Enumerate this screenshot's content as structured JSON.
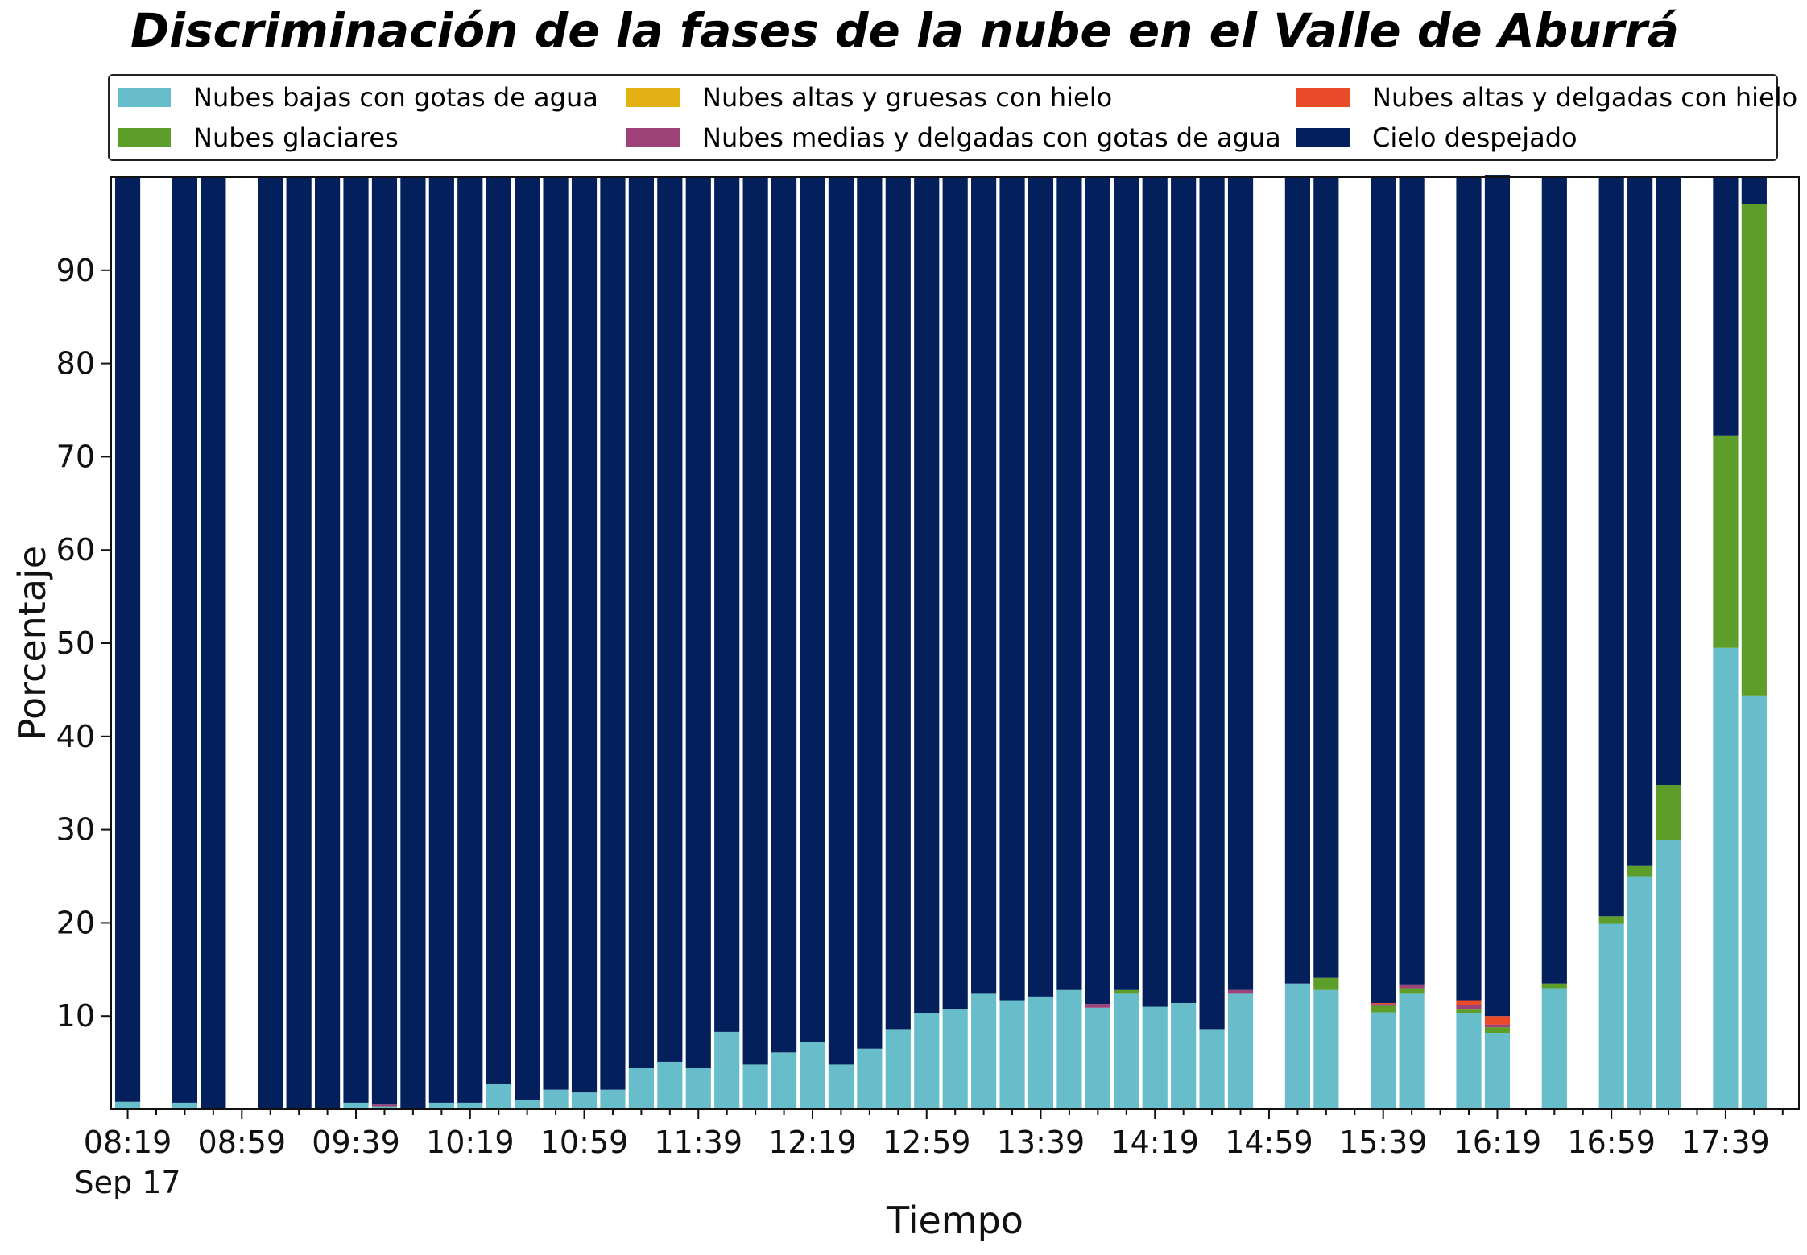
{
  "chart_data": {
    "type": "bar",
    "stacked": true,
    "title": "Discriminación de la fases de la nube en el Valle de Aburrá",
    "xlabel": "Tiempo",
    "ylabel": "Porcentaje",
    "ylim": [
      0,
      100
    ],
    "yticks": [
      10,
      20,
      30,
      40,
      50,
      60,
      70,
      80,
      90
    ],
    "grid": false,
    "legend_position": "top",
    "x_start": "08:19",
    "x_end": "17:59",
    "x_interval_minutes": 10,
    "xtick_labels": [
      "08:19",
      "08:59",
      "09:39",
      "10:19",
      "10:59",
      "11:39",
      "12:19",
      "12:59",
      "13:39",
      "14:19",
      "14:59",
      "15:39",
      "16:19",
      "16:59",
      "17:39"
    ],
    "date_label": "Sep 17",
    "series": [
      {
        "name": "Nubes bajas con gotas de agua",
        "color": "#67BECA",
        "values": [
          0.8,
          0,
          0.7,
          0,
          0,
          0,
          0,
          0,
          0.7,
          0.3,
          0,
          0.7,
          0.7,
          2.7,
          1.0,
          2.1,
          1.8,
          2.1,
          4.4,
          5.1,
          4.4,
          8.3,
          4.8,
          6.1,
          7.2,
          4.8,
          6.5,
          8.6,
          10.3,
          10.7,
          12.4,
          11.7,
          12.1,
          12.8,
          10.9,
          12.4,
          11.0,
          11.4,
          8.6,
          12.4,
          0,
          13.5,
          12.8,
          0,
          10.4,
          12.4,
          0,
          10.3,
          8.2,
          0,
          13.0,
          0,
          19.9,
          25.0,
          28.9,
          0,
          49.5,
          44.4,
          0
        ]
      },
      {
        "name": "Nubes glaciares",
        "color": "#5D9E2A",
        "values": [
          0,
          0,
          0,
          0,
          0,
          0,
          0,
          0,
          0,
          0,
          0,
          0,
          0,
          0,
          0,
          0,
          0,
          0,
          0,
          0,
          0,
          0,
          0,
          0,
          0,
          0,
          0,
          0,
          0,
          0,
          0,
          0,
          0,
          0,
          0,
          0.4,
          0,
          0,
          0,
          0,
          0,
          0,
          1.3,
          0,
          0.7,
          0.6,
          0,
          0.4,
          0.6,
          0,
          0.5,
          0,
          0.8,
          1.1,
          5.9,
          0,
          22.8,
          52.7,
          0
        ]
      },
      {
        "name": "Nubes altas y gruesas con hielo",
        "color": "#E3B114",
        "values": [
          0,
          0,
          0,
          0,
          0,
          0,
          0,
          0,
          0,
          0,
          0,
          0,
          0,
          0,
          0,
          0,
          0,
          0,
          0,
          0,
          0,
          0,
          0,
          0,
          0,
          0,
          0,
          0,
          0,
          0,
          0,
          0,
          0,
          0,
          0,
          0,
          0,
          0,
          0,
          0,
          0,
          0,
          0,
          0,
          0,
          0,
          0,
          0,
          0,
          0,
          0,
          0,
          0,
          0,
          0,
          0,
          0,
          0,
          0
        ]
      },
      {
        "name": "Nubes medias y delgadas con gotas de agua",
        "color": "#A0427A",
        "values": [
          0,
          0,
          0,
          0,
          0,
          0,
          0,
          0,
          0,
          0.2,
          0,
          0,
          0,
          0,
          0,
          0,
          0,
          0,
          0,
          0,
          0,
          0,
          0,
          0,
          0,
          0,
          0,
          0,
          0,
          0,
          0,
          0,
          0,
          0,
          0.4,
          0,
          0,
          0,
          0,
          0.4,
          0,
          0,
          0,
          0,
          0.2,
          0.4,
          0,
          0.5,
          0.3,
          0,
          0,
          0,
          0,
          0,
          0,
          0,
          0,
          0,
          0
        ]
      },
      {
        "name": "Nubes altas y delgadas con hielo",
        "color": "#E94A2A",
        "values": [
          0,
          0,
          0,
          0,
          0,
          0,
          0,
          0,
          0,
          0,
          0,
          0,
          0,
          0,
          0,
          0,
          0,
          0,
          0,
          0,
          0,
          0,
          0,
          0,
          0,
          0,
          0,
          0,
          0,
          0,
          0,
          0,
          0,
          0,
          0,
          0,
          0,
          0,
          0,
          0,
          0,
          0,
          0,
          0,
          0.1,
          0,
          0,
          0.5,
          0.9,
          0,
          0,
          0,
          0,
          0,
          0,
          0,
          0,
          0,
          0
        ]
      },
      {
        "name": "Cielo despejado",
        "color": "#031F5C",
        "values": [
          99.2,
          0,
          99.3,
          100,
          0,
          100,
          100,
          100,
          99.3,
          99.5,
          100,
          99.3,
          99.3,
          97.3,
          99.0,
          97.9,
          98.2,
          97.9,
          95.6,
          94.9,
          95.6,
          91.7,
          95.2,
          93.9,
          92.8,
          95.2,
          93.5,
          91.4,
          89.7,
          89.3,
          87.6,
          88.3,
          87.9,
          87.2,
          88.7,
          87.2,
          89.0,
          88.6,
          91.4,
          87.2,
          0,
          86.5,
          85.9,
          0,
          88.6,
          86.6,
          0,
          88.3,
          90.2,
          0,
          86.5,
          0,
          79.3,
          73.9,
          65.2,
          0,
          27.7,
          2.9,
          0
        ]
      }
    ]
  }
}
